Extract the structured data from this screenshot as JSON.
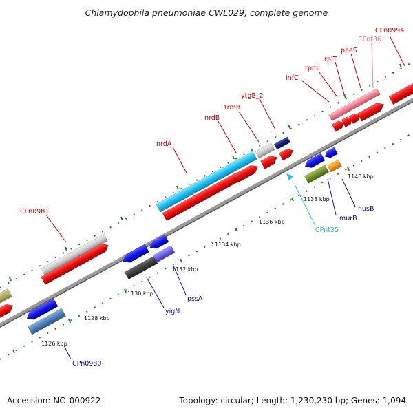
{
  "title": "Chlamydophila pneumoniae CWL029, complete genome",
  "footer": {
    "accession": "Accession: NC_000922",
    "summary": "Topology: circular; Length: 1,230,230 bp; Genes: 1,094"
  },
  "colors": {
    "forward_gene": "#f01010",
    "reverse_gene": "#1010e0",
    "forward_label": "#cc0000",
    "reverse_label": "#1010a0",
    "backbone": "#888888",
    "tick_mark": "#2a7a2a",
    "cpnt35": "#22bbee",
    "cpnt36": "#f07c94"
  },
  "ticks": [
    "1126 kbp",
    "1128 kbp",
    "1130 kbp",
    "1132 kbp",
    "1134 kbp",
    "1136 kbp",
    "1138 kbp",
    "1140 kbp"
  ],
  "forward_labels": [
    "CPn0981",
    "nrdA",
    "nrdB",
    "trmB",
    "ytgB_2",
    "infC",
    "rpmI",
    "rplT",
    "pheS",
    "CPnt36",
    "CPn0994"
  ],
  "reverse_labels": [
    "CPn0980",
    "yigN",
    "pssA",
    "CPnt35",
    "murB",
    "nusB"
  ]
}
